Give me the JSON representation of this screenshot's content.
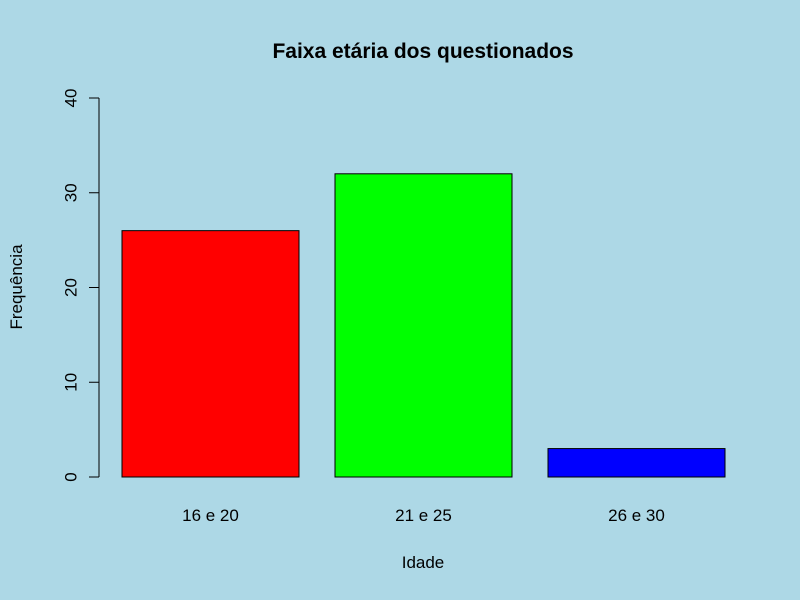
{
  "page": {
    "background": "#ADD8E6"
  },
  "chart_data": {
    "type": "bar",
    "title": "Faixa etária dos questionados",
    "xlabel": "Idade",
    "ylabel": "Frequência",
    "categories": [
      "16 e 20",
      "21 e 25",
      "26 e 30"
    ],
    "values": [
      26,
      32,
      3
    ],
    "colors": [
      "#FF0000",
      "#00FF00",
      "#0000FF"
    ],
    "ylim": [
      0,
      40
    ],
    "yticks": [
      0,
      10,
      20,
      30,
      40
    ],
    "grid": false,
    "legend": "none"
  }
}
